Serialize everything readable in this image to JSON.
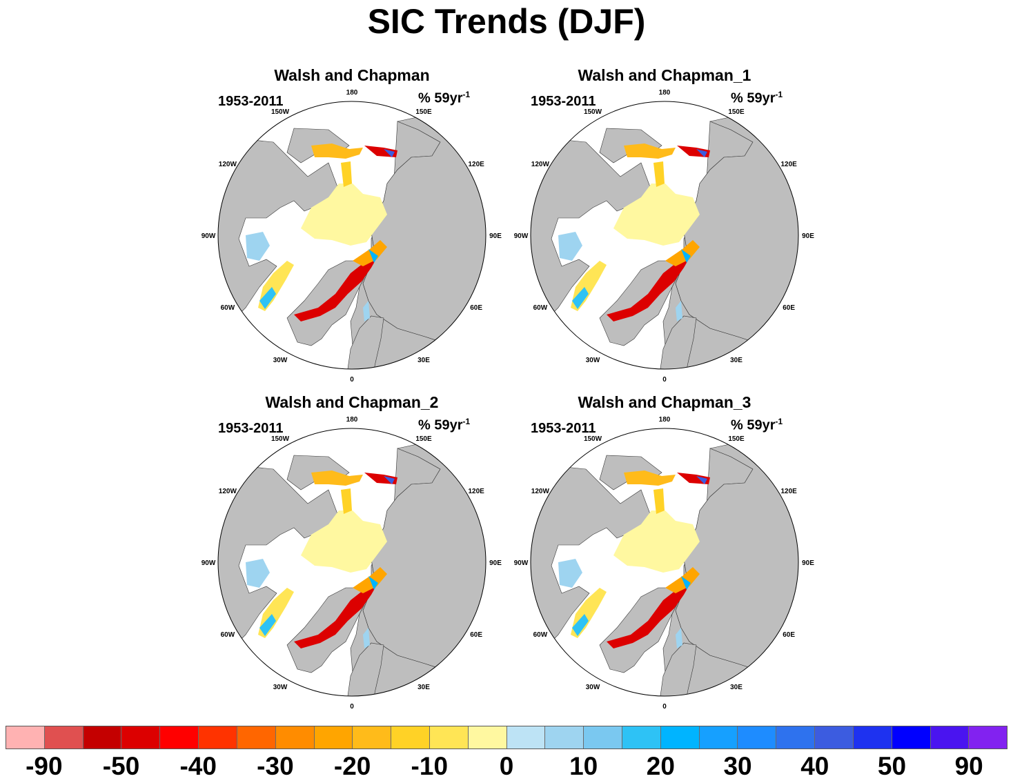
{
  "title": "SIC Trends (DJF)",
  "panels": [
    {
      "title": "Walsh and Chapman",
      "period": "1953-2011",
      "unit_base": "% 59yr",
      "unit_exp": "-1"
    },
    {
      "title": "Walsh and Chapman_1",
      "period": "1953-2011",
      "unit_base": "% 59yr",
      "unit_exp": "-1"
    },
    {
      "title": "Walsh and Chapman_2",
      "period": "1953-2011",
      "unit_base": "% 59yr",
      "unit_exp": "-1"
    },
    {
      "title": "Walsh and Chapman_3",
      "period": "1953-2011",
      "unit_base": "% 59yr",
      "unit_exp": "-1"
    }
  ],
  "map": {
    "projection": "north-polar-stereographic",
    "land_color": "#bebebe",
    "ocean_color": "#ffffff",
    "longitude_labels": [
      "180",
      "150E",
      "120E",
      "90E",
      "60E",
      "30E",
      "0",
      "30W",
      "60W",
      "90W",
      "120W",
      "150W"
    ]
  },
  "colorbar": {
    "colors": [
      "#ffb2b2",
      "#e05050",
      "#c40000",
      "#dc0000",
      "#ff0000",
      "#ff3300",
      "#ff6600",
      "#ff8c00",
      "#ffa500",
      "#ffbb1a",
      "#ffd226",
      "#ffe555",
      "#fff8a0",
      "#bde3f5",
      "#9ed4f0",
      "#7ac8f0",
      "#2ec2f5",
      "#00b4ff",
      "#16a0ff",
      "#1e8cff",
      "#2e72ee",
      "#3c5ce0",
      "#1e32f0",
      "#0000ff",
      "#4a14f0",
      "#8222f0"
    ],
    "labels": [
      "-90",
      "-50",
      "-40",
      "-30",
      "-20",
      "-10",
      "0",
      "10",
      "20",
      "30",
      "40",
      "50",
      "90"
    ]
  }
}
